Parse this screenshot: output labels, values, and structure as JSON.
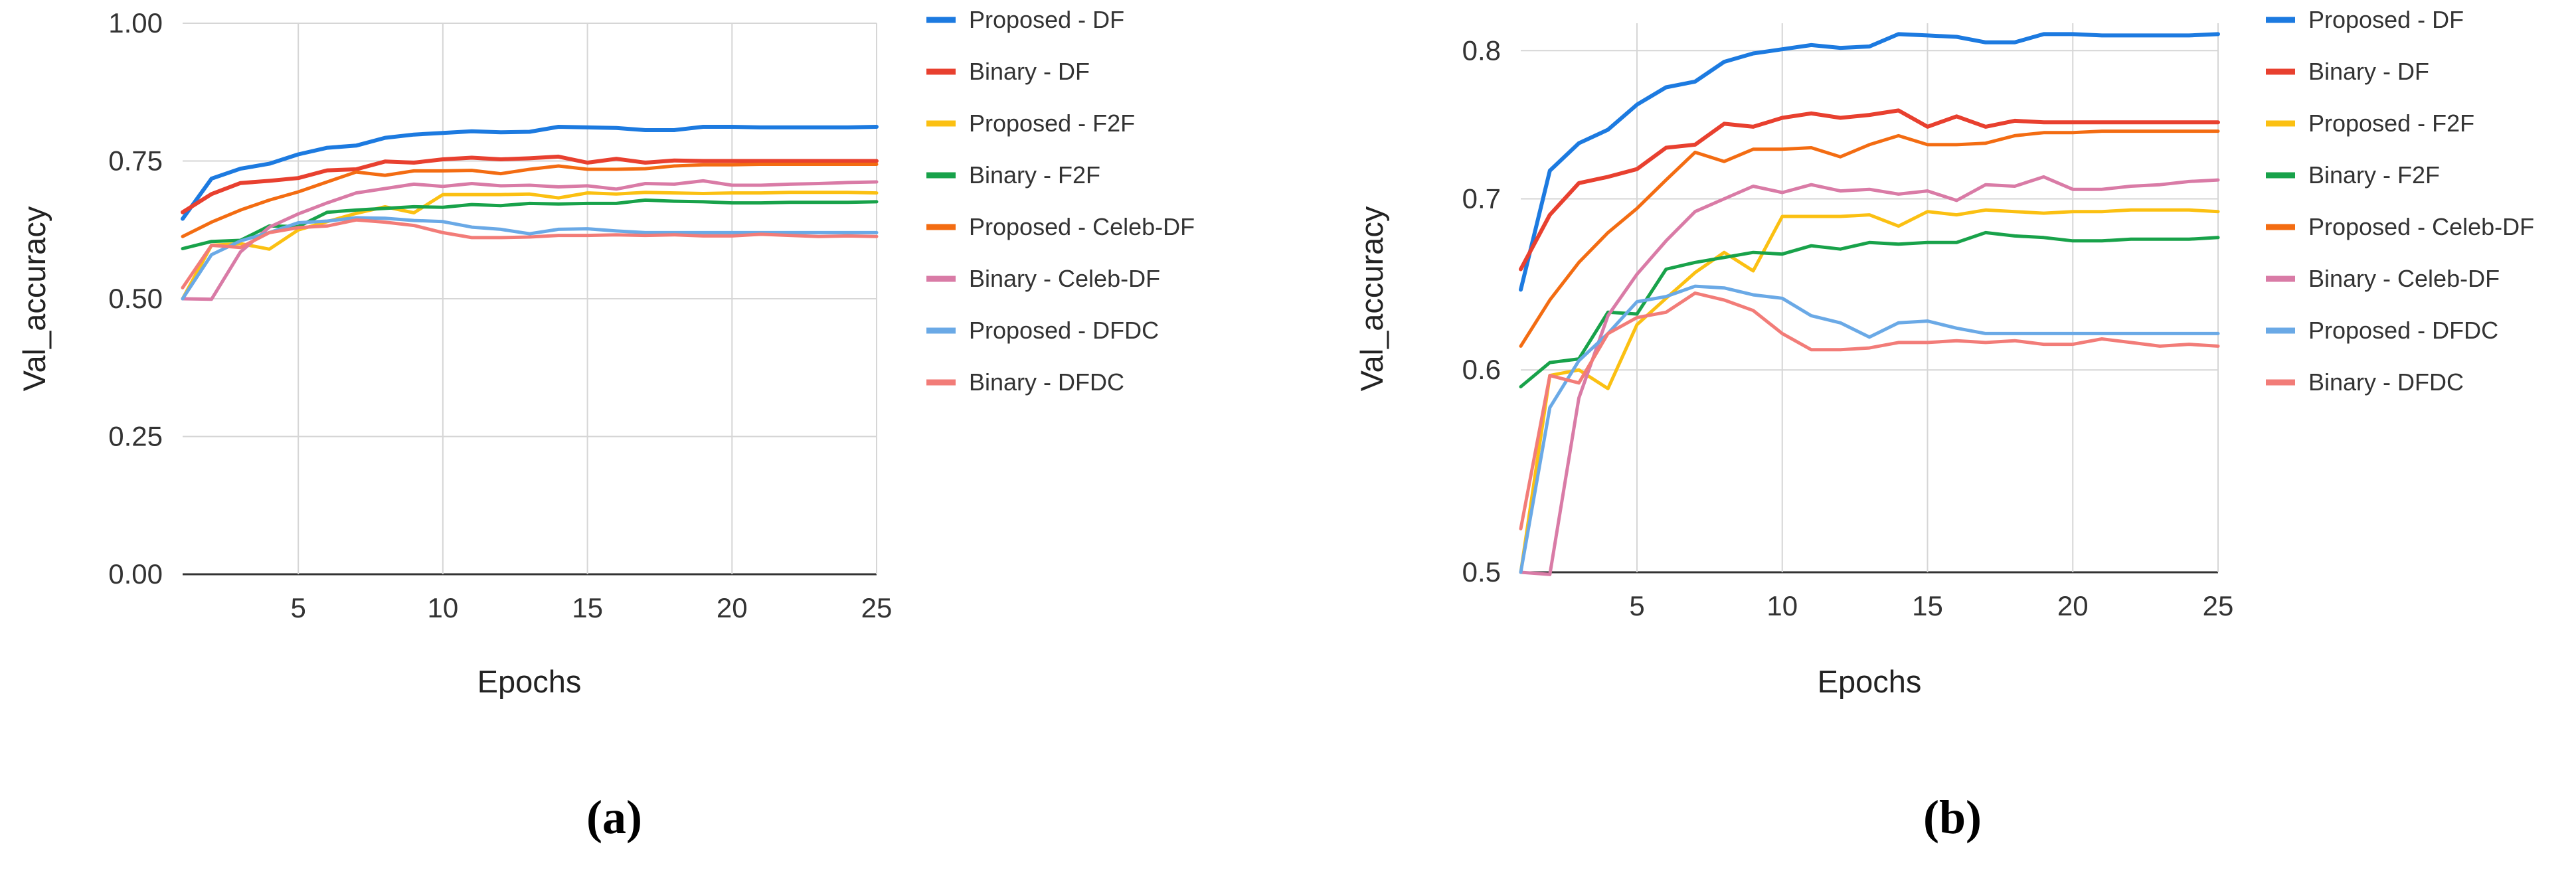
{
  "colors": {
    "grid": "#d6d6d6",
    "axis": "#333333",
    "text": "#333333"
  },
  "series_styles": [
    {
      "name": "Proposed - DF",
      "color": "#1c7ae0"
    },
    {
      "name": "Binary - DF",
      "color": "#e8402f"
    },
    {
      "name": "Proposed - F2F",
      "color": "#fbc012"
    },
    {
      "name": "Binary - F2F",
      "color": "#18a24a"
    },
    {
      "name": "Proposed - Celeb-DF",
      "color": "#f36c12"
    },
    {
      "name": "Binary - Celeb-DF",
      "color": "#d97ba6"
    },
    {
      "name": "Proposed - DFDC",
      "color": "#6aa9e6"
    },
    {
      "name": "Binary - DFDC",
      "color": "#f27c78"
    }
  ],
  "chart_data": [
    {
      "type": "line",
      "caption": "(a)",
      "xlabel": "Epochs",
      "ylabel": "Val_accuracy",
      "xlim": [
        1,
        25
      ],
      "ylim": [
        0,
        1
      ],
      "xticks": [
        "5",
        "10",
        "15",
        "20",
        "25"
      ],
      "xtick_values": [
        5,
        10,
        15,
        20,
        25
      ],
      "yticks": [
        "0.00",
        "0.25",
        "0.50",
        "0.75",
        "1.00"
      ],
      "ytick_values": [
        0,
        0.25,
        0.5,
        0.75,
        1.0
      ],
      "grid": true,
      "legend_position": "right",
      "x": [
        1,
        2,
        3,
        4,
        5,
        6,
        7,
        8,
        9,
        10,
        11,
        12,
        13,
        14,
        15,
        16,
        17,
        18,
        19,
        20,
        21,
        22,
        23,
        24,
        25
      ],
      "series": [
        {
          "name": "Proposed - DF",
          "values": [
            0.645,
            0.718,
            0.736,
            0.745,
            0.762,
            0.774,
            0.778,
            0.792,
            0.798,
            0.801,
            0.804,
            0.802,
            0.803,
            0.812,
            0.811,
            0.81,
            0.806,
            0.806,
            0.812,
            0.812,
            0.811,
            0.811,
            0.811,
            0.811,
            0.812
          ]
        },
        {
          "name": "Binary - DF",
          "values": [
            0.657,
            0.69,
            0.71,
            0.714,
            0.719,
            0.733,
            0.735,
            0.749,
            0.747,
            0.753,
            0.756,
            0.753,
            0.755,
            0.758,
            0.747,
            0.754,
            0.747,
            0.751,
            0.75,
            0.75,
            0.75,
            0.75,
            0.75,
            0.75,
            0.75
          ]
        },
        {
          "name": "Proposed - F2F",
          "values": [
            0.5,
            0.597,
            0.6,
            0.59,
            0.625,
            0.64,
            0.655,
            0.667,
            0.656,
            0.689,
            0.689,
            0.689,
            0.69,
            0.683,
            0.692,
            0.69,
            0.693,
            0.692,
            0.691,
            0.692,
            0.692,
            0.693,
            0.693,
            0.693,
            0.692
          ]
        },
        {
          "name": "Binary - F2F",
          "values": [
            0.591,
            0.604,
            0.606,
            0.632,
            0.631,
            0.657,
            0.661,
            0.664,
            0.667,
            0.666,
            0.671,
            0.669,
            0.673,
            0.672,
            0.673,
            0.673,
            0.679,
            0.677,
            0.676,
            0.674,
            0.674,
            0.675,
            0.675,
            0.675,
            0.676
          ]
        },
        {
          "name": "Proposed - Celeb-DF",
          "values": [
            0.613,
            0.639,
            0.661,
            0.679,
            0.694,
            0.712,
            0.73,
            0.724,
            0.732,
            0.732,
            0.733,
            0.727,
            0.735,
            0.741,
            0.735,
            0.735,
            0.736,
            0.741,
            0.743,
            0.743,
            0.744,
            0.744,
            0.744,
            0.744,
            0.744
          ]
        },
        {
          "name": "Binary - Celeb-DF",
          "values": [
            0.5,
            0.499,
            0.585,
            0.63,
            0.654,
            0.674,
            0.692,
            0.7,
            0.708,
            0.704,
            0.709,
            0.705,
            0.706,
            0.703,
            0.705,
            0.699,
            0.709,
            0.708,
            0.714,
            0.706,
            0.706,
            0.708,
            0.709,
            0.711,
            0.712
          ]
        },
        {
          "name": "Proposed - DFDC",
          "values": [
            0.5,
            0.58,
            0.605,
            0.62,
            0.638,
            0.641,
            0.647,
            0.646,
            0.642,
            0.64,
            0.63,
            0.626,
            0.618,
            0.626,
            0.627,
            0.623,
            0.62,
            0.62,
            0.62,
            0.62,
            0.62,
            0.62,
            0.62,
            0.62,
            0.62
          ]
        },
        {
          "name": "Binary - DFDC",
          "values": [
            0.52,
            0.597,
            0.593,
            0.62,
            0.629,
            0.632,
            0.643,
            0.639,
            0.633,
            0.62,
            0.611,
            0.611,
            0.612,
            0.615,
            0.615,
            0.616,
            0.615,
            0.616,
            0.614,
            0.614,
            0.617,
            0.615,
            0.613,
            0.614,
            0.613
          ]
        }
      ]
    },
    {
      "type": "line",
      "caption": "(b)",
      "xlabel": "Epochs",
      "ylabel": "Val_accuracy",
      "xlim": [
        1,
        25
      ],
      "yscale": "log",
      "ylim": [
        0.5,
        0.82
      ],
      "xticks": [
        "5",
        "10",
        "15",
        "20",
        "25"
      ],
      "xtick_values": [
        5,
        10,
        15,
        20,
        25
      ],
      "yticks": [
        "0.5",
        "0.6",
        "0.7",
        "0.8"
      ],
      "ytick_values": [
        0.5,
        0.6,
        0.7,
        0.8
      ],
      "grid": true,
      "legend_position": "right",
      "x": [
        1,
        2,
        3,
        4,
        5,
        6,
        7,
        8,
        9,
        10,
        11,
        12,
        13,
        14,
        15,
        16,
        17,
        18,
        19,
        20,
        21,
        22,
        23,
        24,
        25
      ],
      "series": [
        {
          "name": "Proposed - DF",
          "values": [
            0.645,
            0.718,
            0.736,
            0.745,
            0.762,
            0.774,
            0.778,
            0.792,
            0.798,
            0.801,
            0.804,
            0.802,
            0.803,
            0.812,
            0.811,
            0.81,
            0.806,
            0.806,
            0.812,
            0.812,
            0.811,
            0.811,
            0.811,
            0.811,
            0.812
          ]
        },
        {
          "name": "Binary - DF",
          "values": [
            0.657,
            0.69,
            0.71,
            0.714,
            0.719,
            0.733,
            0.735,
            0.749,
            0.747,
            0.753,
            0.756,
            0.753,
            0.755,
            0.758,
            0.747,
            0.754,
            0.747,
            0.751,
            0.75,
            0.75,
            0.75,
            0.75,
            0.75,
            0.75,
            0.75
          ]
        },
        {
          "name": "Proposed - F2F",
          "values": [
            0.5,
            0.597,
            0.6,
            0.59,
            0.625,
            0.64,
            0.655,
            0.667,
            0.656,
            0.689,
            0.689,
            0.689,
            0.69,
            0.683,
            0.692,
            0.69,
            0.693,
            0.692,
            0.691,
            0.692,
            0.692,
            0.693,
            0.693,
            0.693,
            0.692
          ]
        },
        {
          "name": "Binary - F2F",
          "values": [
            0.591,
            0.604,
            0.606,
            0.632,
            0.631,
            0.657,
            0.661,
            0.664,
            0.667,
            0.666,
            0.671,
            0.669,
            0.673,
            0.672,
            0.673,
            0.673,
            0.679,
            0.677,
            0.676,
            0.674,
            0.674,
            0.675,
            0.675,
            0.675,
            0.676
          ]
        },
        {
          "name": "Proposed - Celeb-DF",
          "values": [
            0.613,
            0.639,
            0.661,
            0.679,
            0.694,
            0.712,
            0.73,
            0.724,
            0.732,
            0.732,
            0.733,
            0.727,
            0.735,
            0.741,
            0.735,
            0.735,
            0.736,
            0.741,
            0.743,
            0.743,
            0.744,
            0.744,
            0.744,
            0.744,
            0.744
          ]
        },
        {
          "name": "Binary - Celeb-DF",
          "values": [
            0.5,
            0.499,
            0.585,
            0.63,
            0.654,
            0.674,
            0.692,
            0.7,
            0.708,
            0.704,
            0.709,
            0.705,
            0.706,
            0.703,
            0.705,
            0.699,
            0.709,
            0.708,
            0.714,
            0.706,
            0.706,
            0.708,
            0.709,
            0.711,
            0.712
          ]
        },
        {
          "name": "Proposed - DFDC",
          "values": [
            0.5,
            0.58,
            0.605,
            0.62,
            0.638,
            0.641,
            0.647,
            0.646,
            0.642,
            0.64,
            0.63,
            0.626,
            0.618,
            0.626,
            0.627,
            0.623,
            0.62,
            0.62,
            0.62,
            0.62,
            0.62,
            0.62,
            0.62,
            0.62,
            0.62
          ]
        },
        {
          "name": "Binary - DFDC",
          "values": [
            0.52,
            0.597,
            0.593,
            0.62,
            0.629,
            0.632,
            0.643,
            0.639,
            0.633,
            0.62,
            0.611,
            0.611,
            0.612,
            0.615,
            0.615,
            0.616,
            0.615,
            0.616,
            0.614,
            0.614,
            0.617,
            0.615,
            0.613,
            0.614,
            0.613
          ]
        }
      ]
    }
  ]
}
